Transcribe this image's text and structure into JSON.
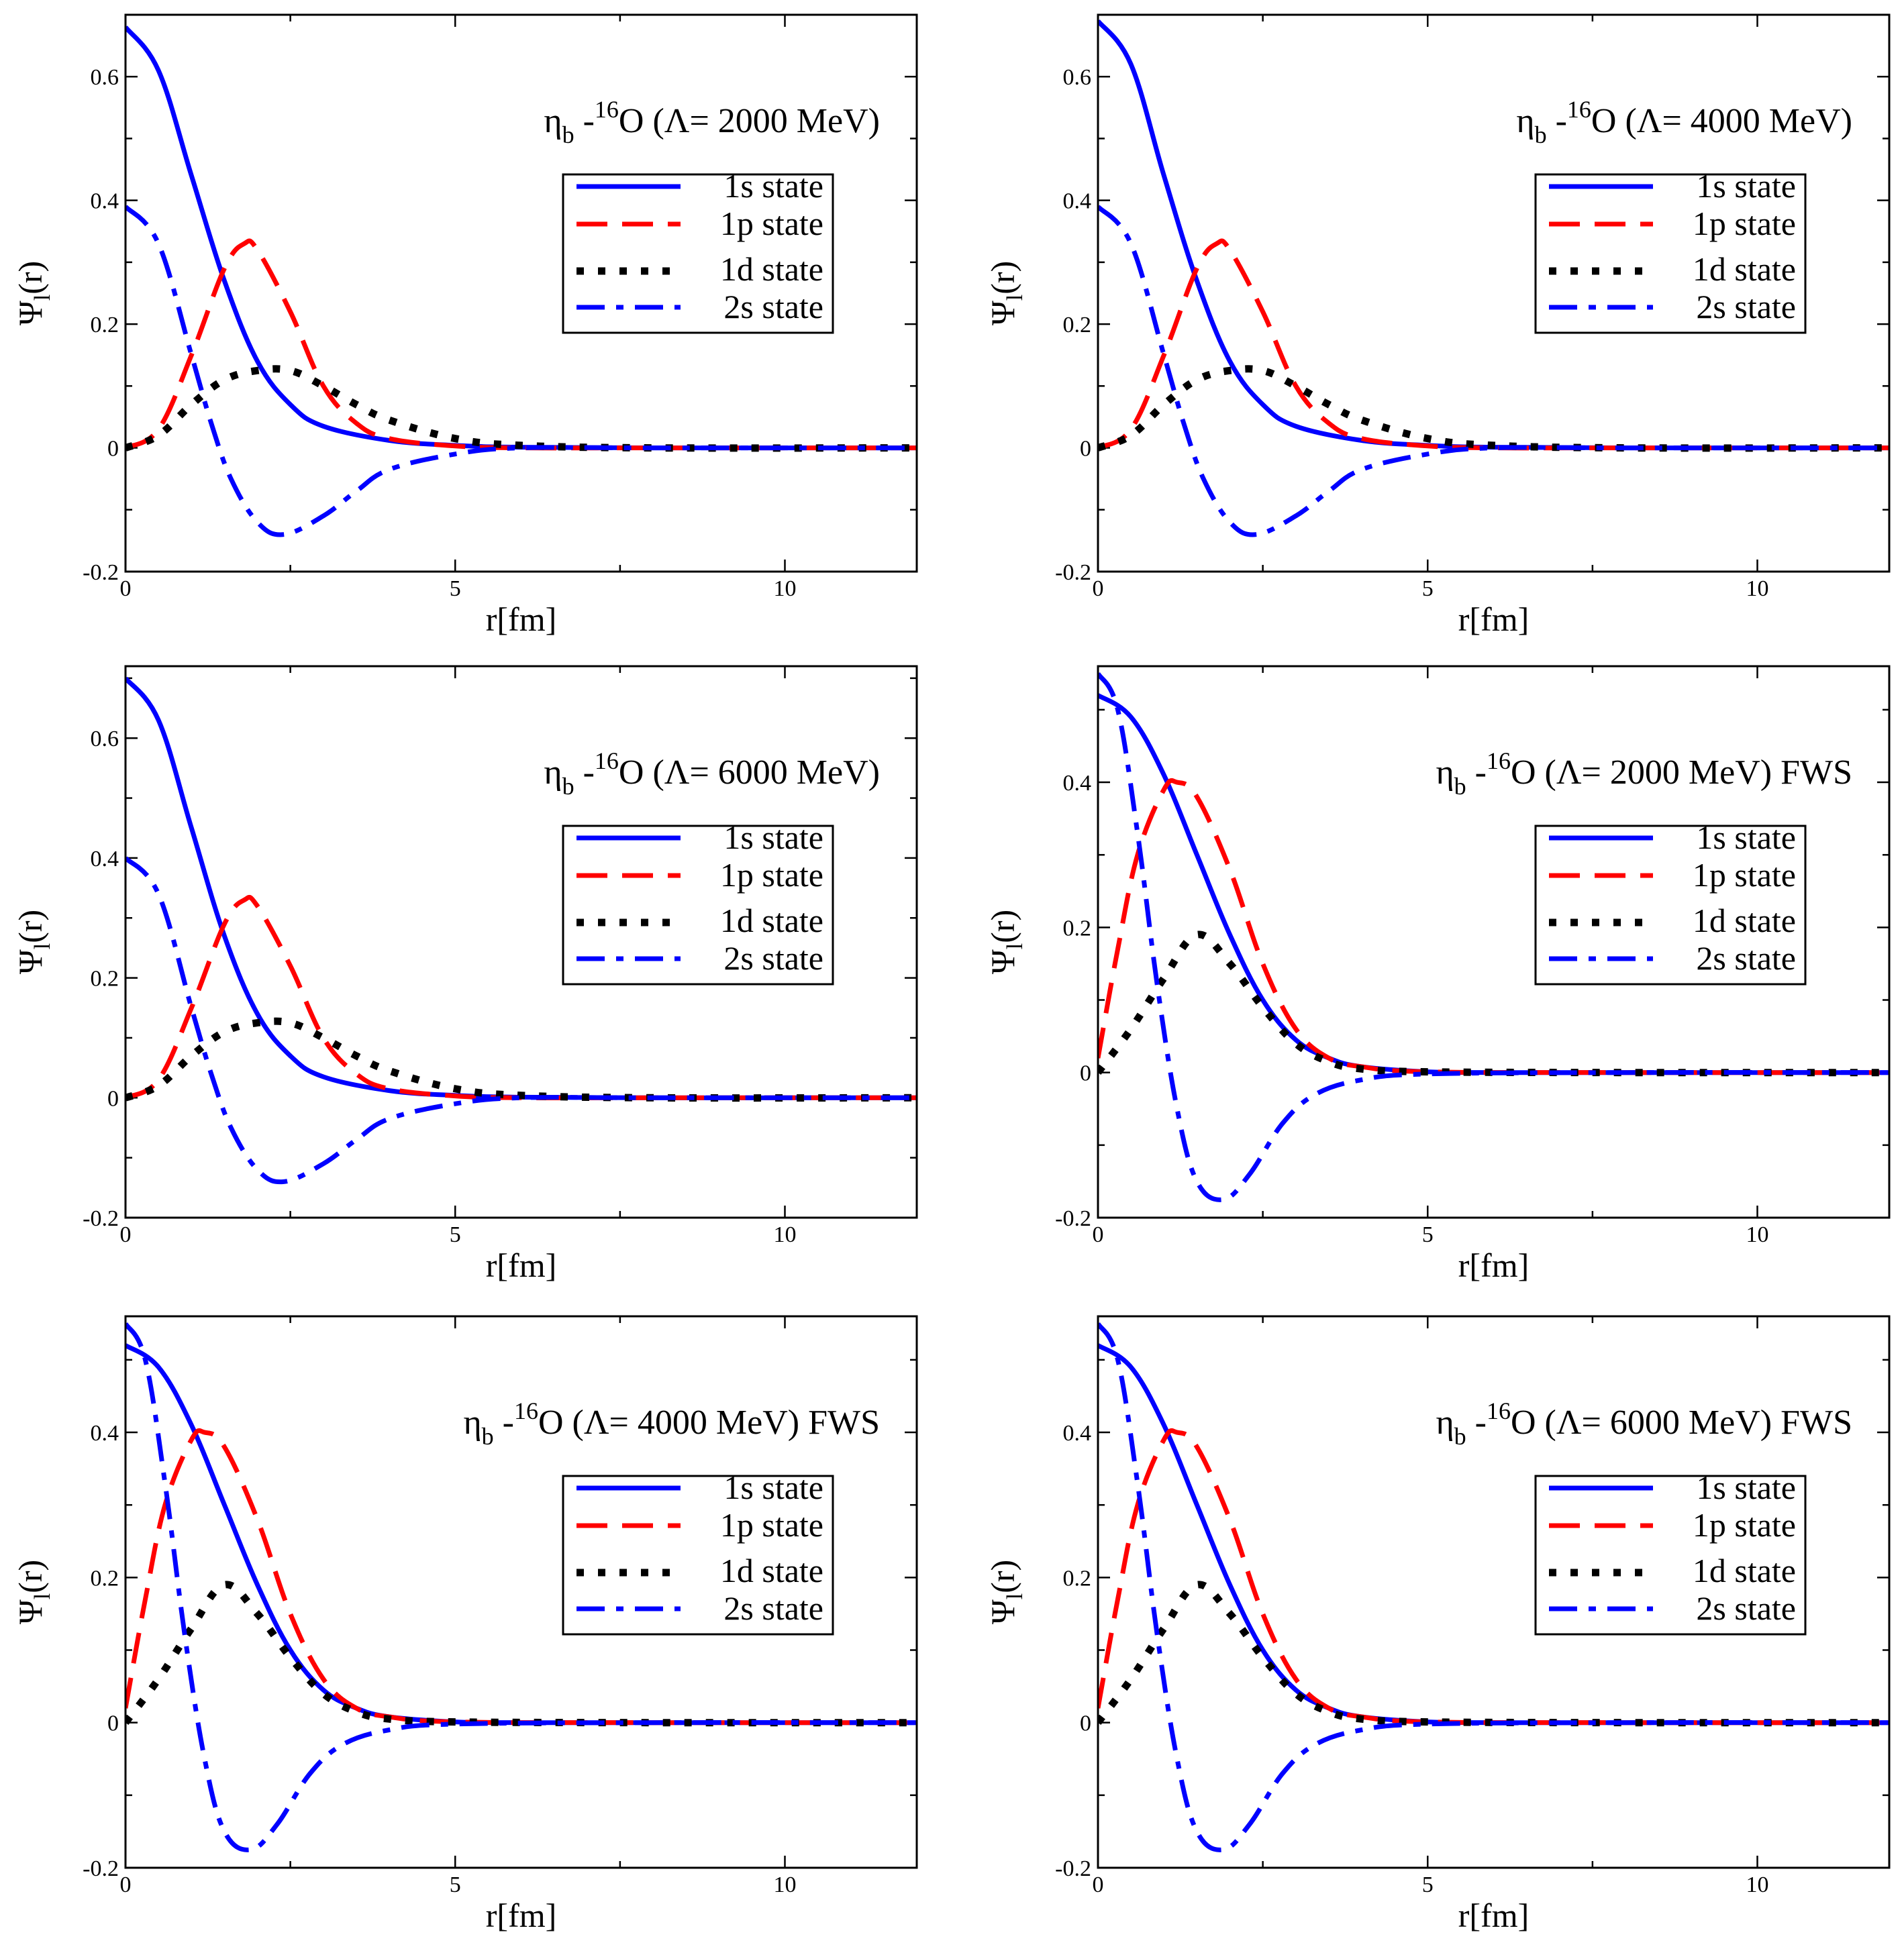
{
  "chart_data": [
    {
      "type": "line",
      "title": {
        "particle": "η",
        "particle_sub": "b",
        "dash": " -",
        "mass_sup": "16",
        "rest": "O (Λ= 2000 MeV)"
      },
      "xlabel": "r[fm]",
      "ylabel": {
        "main": "Ψ",
        "sub": "l",
        "rest": "(r)"
      },
      "xlim": [
        0,
        12
      ],
      "ylim": [
        -0.2,
        0.7
      ],
      "xticks": [
        "0",
        "5",
        "10"
      ],
      "yticks": [
        "-0.2",
        "0",
        "0.2",
        "0.4",
        "0.6"
      ],
      "ytick_values": [
        -0.2,
        0,
        0.2,
        0.4,
        0.6
      ],
      "legend_position": "upper-right",
      "series": [
        {
          "name": "1s state",
          "color": "#0000ff",
          "style": "solid",
          "x": [
            0,
            0.5,
            1.0,
            1.5,
            2.0,
            2.5,
            3.0,
            4.0,
            5.0,
            6.0,
            8.0,
            10.0,
            12.0
          ],
          "y": [
            0.68,
            0.61,
            0.44,
            0.27,
            0.14,
            0.07,
            0.035,
            0.012,
            0.004,
            0.001,
            0,
            0,
            0
          ]
        },
        {
          "name": "1p state",
          "color": "#ff0000",
          "style": "dash",
          "x": [
            0,
            0.5,
            1.0,
            1.5,
            1.8,
            2.0,
            2.5,
            3.0,
            3.5,
            4.0,
            5.0,
            6.0,
            8.0,
            12.0
          ],
          "y": [
            0,
            0.03,
            0.15,
            0.29,
            0.33,
            0.32,
            0.22,
            0.1,
            0.04,
            0.015,
            0.003,
            0,
            0,
            0
          ]
        },
        {
          "name": "1d state",
          "color": "#000000",
          "style": "dot",
          "x": [
            0,
            0.5,
            1.0,
            1.5,
            2.0,
            2.5,
            3.0,
            3.5,
            4.0,
            5.0,
            6.0,
            8.0,
            12.0
          ],
          "y": [
            0,
            0.02,
            0.07,
            0.11,
            0.125,
            0.125,
            0.1,
            0.07,
            0.045,
            0.015,
            0.004,
            0,
            0
          ]
        },
        {
          "name": "2s state",
          "color": "#0000ff",
          "style": "dashdot",
          "x": [
            0,
            0.5,
            1.0,
            1.3,
            1.6,
            2.0,
            2.4,
            3.0,
            3.5,
            4.0,
            5.0,
            6.0,
            8.0,
            12.0
          ],
          "y": [
            0.39,
            0.33,
            0.15,
            0.04,
            -0.05,
            -0.12,
            -0.14,
            -0.11,
            -0.07,
            -0.035,
            -0.01,
            0,
            0,
            0
          ]
        }
      ]
    },
    {
      "type": "line",
      "title": {
        "particle": "η",
        "particle_sub": "b",
        "dash": " -",
        "mass_sup": "16",
        "rest": "O (Λ= 4000 MeV)"
      },
      "xlabel": "r[fm]",
      "ylabel": {
        "main": "Ψ",
        "sub": "l",
        "rest": "(r)"
      },
      "xlim": [
        0,
        12
      ],
      "ylim": [
        -0.2,
        0.7
      ],
      "xticks": [
        "0",
        "5",
        "10"
      ],
      "yticks": [
        "-0.2",
        "0",
        "0.2",
        "0.4",
        "0.6"
      ],
      "ytick_values": [
        -0.2,
        0,
        0.2,
        0.4,
        0.6
      ],
      "legend_position": "upper-right",
      "series": [
        {
          "name": "1s state",
          "color": "#0000ff",
          "style": "solid",
          "x": [
            0,
            0.5,
            1.0,
            1.5,
            2.0,
            2.5,
            3.0,
            4.0,
            5.0,
            6.0,
            8.0,
            10.0,
            12.0
          ],
          "y": [
            0.69,
            0.62,
            0.44,
            0.27,
            0.14,
            0.07,
            0.035,
            0.012,
            0.004,
            0.001,
            0,
            0,
            0
          ]
        },
        {
          "name": "1p state",
          "color": "#ff0000",
          "style": "dash",
          "x": [
            0,
            0.5,
            1.0,
            1.5,
            1.8,
            2.0,
            2.5,
            3.0,
            3.5,
            4.0,
            5.0,
            6.0,
            8.0,
            12.0
          ],
          "y": [
            0,
            0.03,
            0.15,
            0.29,
            0.33,
            0.32,
            0.22,
            0.1,
            0.04,
            0.015,
            0.003,
            0,
            0,
            0
          ]
        },
        {
          "name": "1d state",
          "color": "#000000",
          "style": "dot",
          "x": [
            0,
            0.5,
            1.0,
            1.5,
            2.0,
            2.5,
            3.0,
            3.5,
            4.0,
            5.0,
            6.0,
            8.0,
            12.0
          ],
          "y": [
            0,
            0.02,
            0.07,
            0.11,
            0.125,
            0.125,
            0.1,
            0.07,
            0.045,
            0.015,
            0.004,
            0,
            0
          ]
        },
        {
          "name": "2s state",
          "color": "#0000ff",
          "style": "dashdot",
          "x": [
            0,
            0.5,
            1.0,
            1.3,
            1.6,
            2.0,
            2.4,
            3.0,
            3.5,
            4.0,
            5.0,
            6.0,
            8.0,
            12.0
          ],
          "y": [
            0.39,
            0.33,
            0.15,
            0.04,
            -0.05,
            -0.12,
            -0.14,
            -0.11,
            -0.07,
            -0.035,
            -0.01,
            0,
            0,
            0
          ]
        }
      ]
    },
    {
      "type": "line",
      "title": {
        "particle": "η",
        "particle_sub": "b",
        "dash": " -",
        "mass_sup": "16",
        "rest": "O (Λ= 6000 MeV)"
      },
      "xlabel": "r[fm]",
      "ylabel": {
        "main": "Ψ",
        "sub": "l",
        "rest": "(r)"
      },
      "xlim": [
        0,
        12
      ],
      "ylim": [
        -0.2,
        0.72
      ],
      "xticks": [
        "0",
        "5",
        "10"
      ],
      "yticks": [
        "-0.2",
        "0",
        "0.2",
        "0.4",
        "0.6"
      ],
      "ytick_values": [
        -0.2,
        0,
        0.2,
        0.4,
        0.6
      ],
      "legend_position": "upper-right",
      "series": [
        {
          "name": "1s state",
          "color": "#0000ff",
          "style": "solid",
          "x": [
            0,
            0.5,
            1.0,
            1.5,
            2.0,
            2.5,
            3.0,
            4.0,
            5.0,
            6.0,
            8.0,
            10.0,
            12.0
          ],
          "y": [
            0.7,
            0.63,
            0.45,
            0.27,
            0.14,
            0.07,
            0.035,
            0.012,
            0.004,
            0.001,
            0,
            0,
            0
          ]
        },
        {
          "name": "1p state",
          "color": "#ff0000",
          "style": "dash",
          "x": [
            0,
            0.5,
            1.0,
            1.5,
            1.8,
            2.0,
            2.5,
            3.0,
            3.5,
            4.0,
            5.0,
            6.0,
            8.0,
            12.0
          ],
          "y": [
            0,
            0.03,
            0.15,
            0.29,
            0.33,
            0.32,
            0.22,
            0.1,
            0.04,
            0.015,
            0.003,
            0,
            0,
            0
          ]
        },
        {
          "name": "1d state",
          "color": "#000000",
          "style": "dot",
          "x": [
            0,
            0.5,
            1.0,
            1.5,
            2.0,
            2.5,
            3.0,
            3.5,
            4.0,
            5.0,
            6.0,
            8.0,
            12.0
          ],
          "y": [
            0,
            0.02,
            0.07,
            0.11,
            0.125,
            0.125,
            0.1,
            0.07,
            0.045,
            0.015,
            0.004,
            0,
            0
          ]
        },
        {
          "name": "2s state",
          "color": "#0000ff",
          "style": "dashdot",
          "x": [
            0,
            0.5,
            1.0,
            1.3,
            1.6,
            2.0,
            2.4,
            3.0,
            3.5,
            4.0,
            5.0,
            6.0,
            8.0,
            12.0
          ],
          "y": [
            0.4,
            0.34,
            0.15,
            0.04,
            -0.05,
            -0.12,
            -0.14,
            -0.11,
            -0.07,
            -0.035,
            -0.01,
            0,
            0,
            0
          ]
        }
      ]
    },
    {
      "type": "line",
      "title": {
        "particle": "η",
        "particle_sub": "b",
        "dash": " -",
        "mass_sup": "16",
        "rest": "O (Λ= 2000 MeV) FWS"
      },
      "xlabel": "r[fm]",
      "ylabel": {
        "main": "Ψ",
        "sub": "l",
        "rest": "(r)"
      },
      "xlim": [
        0,
        12
      ],
      "ylim": [
        -0.2,
        0.56
      ],
      "xticks": [
        "0",
        "5",
        "10"
      ],
      "yticks": [
        "-0.2",
        "0",
        "0.2",
        "0.4"
      ],
      "ytick_values": [
        -0.2,
        0,
        0.2,
        0.4
      ],
      "legend_position": "upper-right",
      "series": [
        {
          "name": "1s state",
          "color": "#0000ff",
          "style": "solid",
          "x": [
            0,
            0.5,
            1.0,
            1.5,
            2.0,
            2.5,
            3.0,
            3.5,
            4.0,
            5.0,
            6.0,
            8.0,
            12.0
          ],
          "y": [
            0.52,
            0.49,
            0.41,
            0.3,
            0.19,
            0.1,
            0.045,
            0.02,
            0.008,
            0.001,
            0,
            0,
            0
          ]
        },
        {
          "name": "1p state",
          "color": "#ff0000",
          "style": "dash",
          "x": [
            0,
            0.3,
            0.6,
            1.0,
            1.2,
            1.5,
            2.0,
            2.5,
            3.0,
            3.5,
            4.0,
            5.0,
            8.0,
            12.0
          ],
          "y": [
            0.02,
            0.17,
            0.3,
            0.39,
            0.4,
            0.38,
            0.28,
            0.15,
            0.06,
            0.02,
            0.008,
            0.001,
            0,
            0
          ]
        },
        {
          "name": "1d state",
          "color": "#000000",
          "style": "dot",
          "x": [
            0,
            0.5,
            1.0,
            1.5,
            2.0,
            2.5,
            3.0,
            3.5,
            4.0,
            5.0,
            8.0,
            12.0
          ],
          "y": [
            0,
            0.06,
            0.13,
            0.19,
            0.15,
            0.09,
            0.04,
            0.015,
            0.005,
            0.001,
            0,
            0
          ]
        },
        {
          "name": "2s state",
          "color": "#0000ff",
          "style": "dashdot",
          "x": [
            0,
            0.3,
            0.6,
            0.9,
            1.2,
            1.5,
            1.9,
            2.3,
            2.8,
            3.3,
            4.0,
            5.0,
            8.0,
            12.0
          ],
          "y": [
            0.55,
            0.5,
            0.33,
            0.12,
            -0.05,
            -0.15,
            -0.175,
            -0.14,
            -0.07,
            -0.03,
            -0.01,
            -0.002,
            0,
            0
          ]
        }
      ]
    },
    {
      "type": "line",
      "title": {
        "particle": "η",
        "particle_sub": "b",
        "dash": " -",
        "mass_sup": "16",
        "rest": "O (Λ= 4000 MeV) FWS"
      },
      "xlabel": "r[fm]",
      "ylabel": {
        "main": "Ψ",
        "sub": "l",
        "rest": "(r)"
      },
      "xlim": [
        0,
        12
      ],
      "ylim": [
        -0.2,
        0.56
      ],
      "xticks": [
        "0",
        "5",
        "10"
      ],
      "yticks": [
        "-0.2",
        "0",
        "0.2",
        "0.4"
      ],
      "ytick_values": [
        -0.2,
        0,
        0.2,
        0.4
      ],
      "legend_position": "upper-right",
      "series": [
        {
          "name": "1s state",
          "color": "#0000ff",
          "style": "solid",
          "x": [
            0,
            0.5,
            1.0,
            1.5,
            2.0,
            2.5,
            3.0,
            3.5,
            4.0,
            5.0,
            6.0,
            8.0,
            12.0
          ],
          "y": [
            0.52,
            0.49,
            0.41,
            0.3,
            0.19,
            0.1,
            0.045,
            0.02,
            0.008,
            0.001,
            0,
            0,
            0
          ]
        },
        {
          "name": "1p state",
          "color": "#ff0000",
          "style": "dash",
          "x": [
            0,
            0.3,
            0.6,
            1.0,
            1.2,
            1.5,
            2.0,
            2.5,
            3.0,
            3.5,
            4.0,
            5.0,
            8.0,
            12.0
          ],
          "y": [
            0.02,
            0.17,
            0.3,
            0.39,
            0.4,
            0.38,
            0.28,
            0.15,
            0.06,
            0.02,
            0.008,
            0.001,
            0,
            0
          ]
        },
        {
          "name": "1d state",
          "color": "#000000",
          "style": "dot",
          "x": [
            0,
            0.5,
            1.0,
            1.5,
            2.0,
            2.5,
            3.0,
            3.5,
            4.0,
            5.0,
            8.0,
            12.0
          ],
          "y": [
            0,
            0.06,
            0.13,
            0.19,
            0.15,
            0.09,
            0.04,
            0.015,
            0.005,
            0.001,
            0,
            0
          ]
        },
        {
          "name": "2s state",
          "color": "#0000ff",
          "style": "dashdot",
          "x": [
            0,
            0.3,
            0.6,
            0.9,
            1.2,
            1.5,
            1.9,
            2.3,
            2.8,
            3.3,
            4.0,
            5.0,
            8.0,
            12.0
          ],
          "y": [
            0.55,
            0.5,
            0.33,
            0.12,
            -0.05,
            -0.15,
            -0.175,
            -0.14,
            -0.07,
            -0.03,
            -0.01,
            -0.002,
            0,
            0
          ]
        }
      ]
    },
    {
      "type": "line",
      "title": {
        "particle": "η",
        "particle_sub": "b",
        "dash": " -",
        "mass_sup": "16",
        "rest": "O (Λ= 6000 MeV) FWS"
      },
      "xlabel": "r[fm]",
      "ylabel": {
        "main": "Ψ",
        "sub": "l",
        "rest": "(r)"
      },
      "xlim": [
        0,
        12
      ],
      "ylim": [
        -0.2,
        0.56
      ],
      "xticks": [
        "0",
        "5",
        "10"
      ],
      "yticks": [
        "-0.2",
        "0",
        "0.2",
        "0.4"
      ],
      "ytick_values": [
        -0.2,
        0,
        0.2,
        0.4
      ],
      "legend_position": "upper-right",
      "series": [
        {
          "name": "1s state",
          "color": "#0000ff",
          "style": "solid",
          "x": [
            0,
            0.5,
            1.0,
            1.5,
            2.0,
            2.5,
            3.0,
            3.5,
            4.0,
            5.0,
            6.0,
            8.0,
            12.0
          ],
          "y": [
            0.52,
            0.49,
            0.41,
            0.3,
            0.19,
            0.1,
            0.045,
            0.02,
            0.008,
            0.001,
            0,
            0,
            0
          ]
        },
        {
          "name": "1p state",
          "color": "#ff0000",
          "style": "dash",
          "x": [
            0,
            0.3,
            0.6,
            1.0,
            1.2,
            1.5,
            2.0,
            2.5,
            3.0,
            3.5,
            4.0,
            5.0,
            8.0,
            12.0
          ],
          "y": [
            0.02,
            0.17,
            0.3,
            0.39,
            0.4,
            0.38,
            0.28,
            0.15,
            0.06,
            0.02,
            0.008,
            0.001,
            0,
            0
          ]
        },
        {
          "name": "1d state",
          "color": "#000000",
          "style": "dot",
          "x": [
            0,
            0.5,
            1.0,
            1.5,
            2.0,
            2.5,
            3.0,
            3.5,
            4.0,
            5.0,
            8.0,
            12.0
          ],
          "y": [
            0,
            0.06,
            0.13,
            0.19,
            0.15,
            0.09,
            0.04,
            0.015,
            0.005,
            0.001,
            0,
            0
          ]
        },
        {
          "name": "2s state",
          "color": "#0000ff",
          "style": "dashdot",
          "x": [
            0,
            0.3,
            0.6,
            0.9,
            1.2,
            1.5,
            1.9,
            2.3,
            2.8,
            3.3,
            4.0,
            5.0,
            8.0,
            12.0
          ],
          "y": [
            0.55,
            0.5,
            0.33,
            0.12,
            -0.05,
            -0.15,
            -0.175,
            -0.14,
            -0.07,
            -0.03,
            -0.01,
            -0.002,
            0,
            0
          ]
        }
      ]
    }
  ]
}
